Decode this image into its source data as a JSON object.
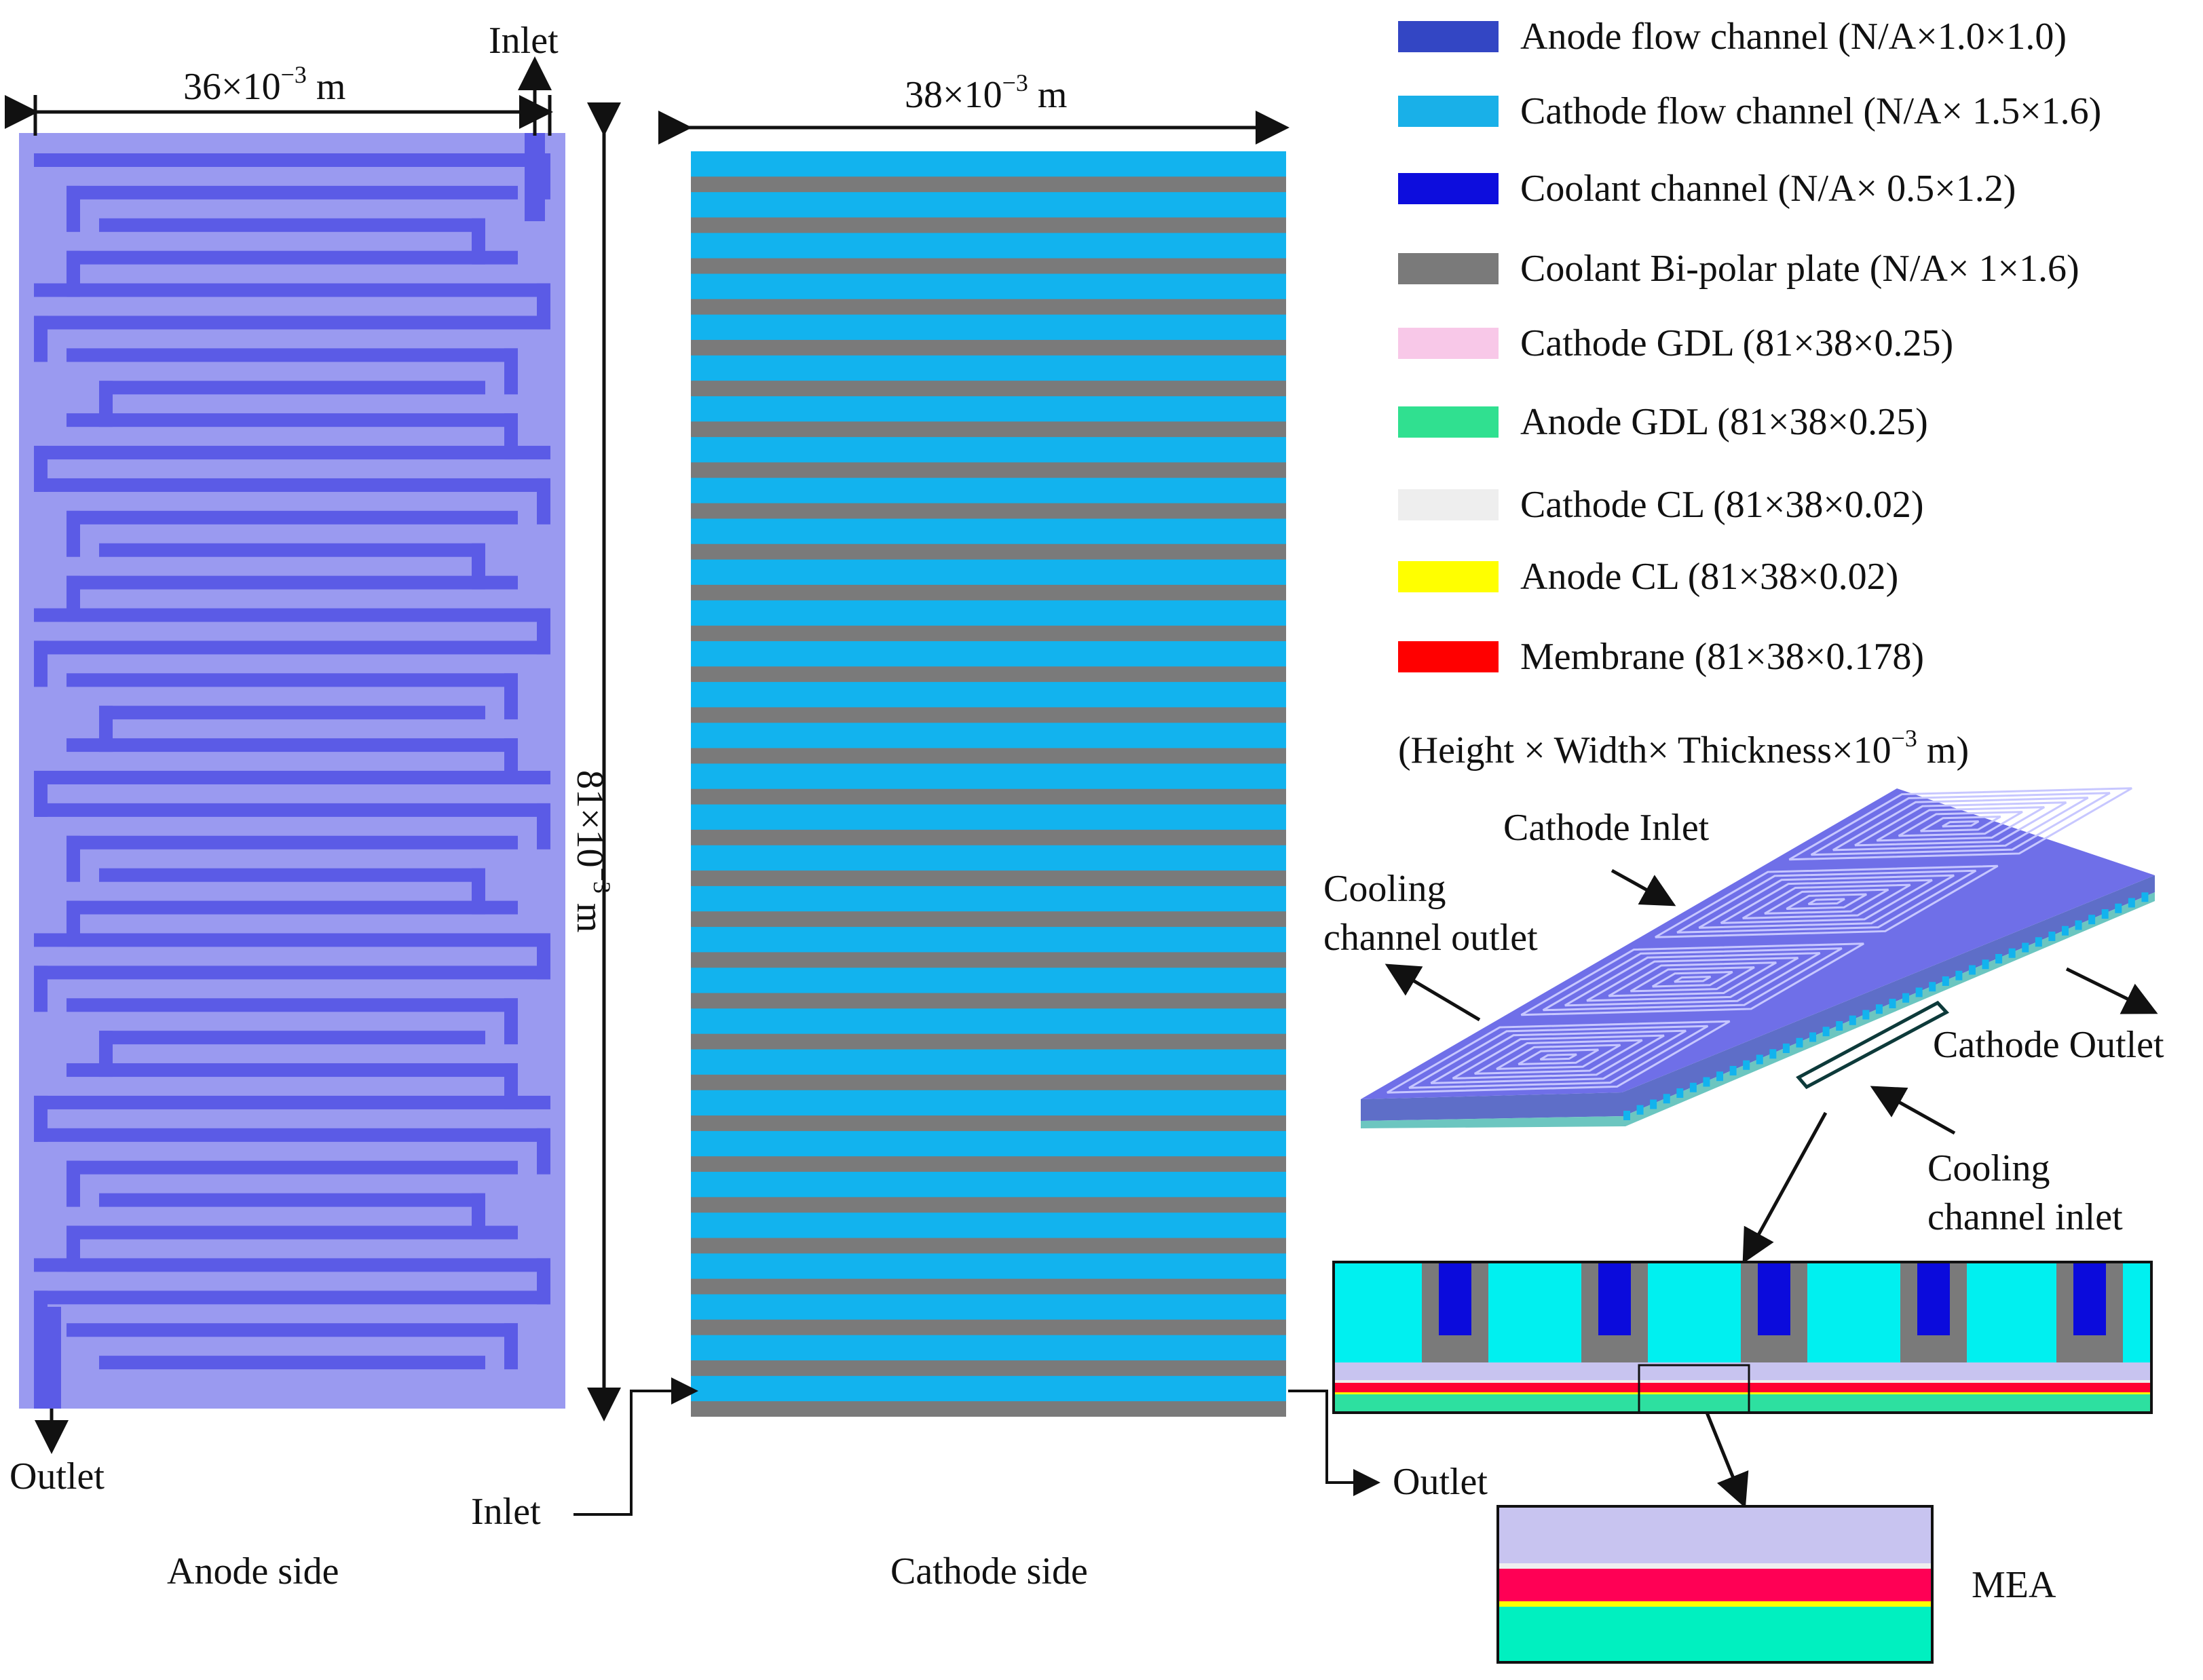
{
  "colors": {
    "anode_plate": "#9a9af0",
    "anode_channel": "#5b5be6",
    "cathode_channel": "#12b3ee",
    "bipolar": "#7a7a7a",
    "coolant": "#0b0bdc",
    "cathode_gdl": "#c8c4f0",
    "anode_gdl": "#2de0a0",
    "cathode_cl": "#eeeeee",
    "anode_cl": "#ffff00",
    "membrane": "#ff0033",
    "mea_gdl": "#00f0c0",
    "mea_membrane": "#ff0055",
    "plate_3d": "#6f6fe8",
    "legend_anode": "#3346c4",
    "legend_cathode": "#19b0e8",
    "legend_coolant": "#0d0ddd",
    "legend_bipolar": "#7a7a7a",
    "legend_cathode_gdl": "#f8c8e8",
    "legend_anode_gdl": "#30e090",
    "legend_cathode_cl": "#eeeeee",
    "legend_anode_cl": "#ffff00",
    "legend_membrane": "#ff0000"
  },
  "anode": {
    "width_dim_base": "36×10",
    "width_dim_exp": "−3",
    "width_dim_unit": " m",
    "inlet": "Inlet",
    "outlet": "Outlet",
    "caption": "Anode side"
  },
  "height_dim": {
    "base": "81×10",
    "exp": "−3",
    "unit": " m"
  },
  "cathode": {
    "width_dim_base": "38×10",
    "width_dim_exp": "−3",
    "width_dim_unit": " m",
    "inlet": "Inlet",
    "outlet": "Outlet",
    "caption": "Cathode side",
    "stripe_pairs": 31
  },
  "legend": {
    "items": [
      {
        "label": "Anode flow channel (N/A×1.0×1.0)",
        "color_key": "legend_anode"
      },
      {
        "label": "Cathode flow channel (N/A× 1.5×1.6)",
        "color_key": "legend_cathode"
      },
      {
        "label": "Coolant channel (N/A× 0.5×1.2)",
        "color_key": "legend_coolant"
      },
      {
        "label": "Coolant Bi-polar plate (N/A× 1×1.6)",
        "color_key": "legend_bipolar"
      },
      {
        "label": "Cathode GDL (81×38×0.25)",
        "color_key": "legend_cathode_gdl"
      },
      {
        "label": "Anode GDL (81×38×0.25)",
        "color_key": "legend_anode_gdl"
      },
      {
        "label": "Cathode CL (81×38×0.02)",
        "color_key": "legend_cathode_cl"
      },
      {
        "label": "Anode CL (81×38×0.02)",
        "color_key": "legend_anode_cl"
      },
      {
        "label": "Membrane (81×38×0.178)",
        "color_key": "legend_membrane"
      }
    ],
    "note_base": "(Height × Width× Thickness×10",
    "note_exp": "−3",
    "note_unit": " m)"
  },
  "iso": {
    "cathode_inlet": "Cathode Inlet",
    "cooling_outlet_1": "Cooling",
    "cooling_outlet_2": "channel outlet",
    "cathode_outlet": "Cathode Outlet",
    "cooling_inlet_1": "Cooling",
    "cooling_inlet_2": "channel inlet"
  },
  "mea_label": "MEA"
}
